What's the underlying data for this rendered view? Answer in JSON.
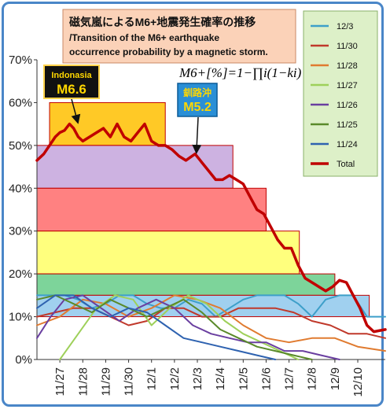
{
  "chart_data": {
    "type": "line",
    "title": "磁気嵐によるM6+地震発生確率の推移",
    "subtitle_lines": [
      "/Transition of the M6+ earthquake",
      "occurrence probability by a magnetic storm."
    ],
    "formula": "M6+[%]=1−∏i(1−ki)",
    "ylim": [
      0,
      70
    ],
    "y_ticks": [
      "0%",
      "10%",
      "20%",
      "30%",
      "40%",
      "50%",
      "60%",
      "70%"
    ],
    "x_ticks": [
      "11/27",
      "11/28",
      "11/29",
      "11/30",
      "12/1",
      "12/2",
      "12/3",
      "12/4",
      "12/5",
      "12/6",
      "12/7",
      "12/8",
      "12/9",
      "12/10"
    ],
    "xlim": [
      0,
      15.2
    ],
    "annotations": [
      {
        "line1": "Indonasia",
        "line2": "M6.6",
        "x": 1.42,
        "y": 55
      },
      {
        "line1": "釧路沖",
        "line2": "M5.2",
        "x": 6.9,
        "y": 48
      }
    ],
    "bands": [
      {
        "x0": 0.55,
        "x1": 5.6,
        "y0": 50,
        "y1": 60,
        "color": "#ffc000"
      },
      {
        "x0": 0.0,
        "x1": 8.55,
        "y0": 40,
        "y1": 50,
        "color": "#c4a4dc"
      },
      {
        "x0": 0.0,
        "x1": 10.0,
        "y0": 30,
        "y1": 40,
        "color": "#ff6b6b"
      },
      {
        "x0": 0.0,
        "x1": 11.45,
        "y0": 20,
        "y1": 30,
        "color": "#ffff66"
      },
      {
        "x0": 0.0,
        "x1": 13.0,
        "y0": 15,
        "y1": 20,
        "color": "#66cc88"
      },
      {
        "x0": 0.0,
        "x1": 14.5,
        "y0": 10,
        "y1": 15,
        "color": "#8fc8ec"
      }
    ],
    "series": [
      {
        "name": "12/3",
        "color": "#3d9fc9",
        "width": 2,
        "x": [
          0.0,
          0.6,
          1.2,
          1.8,
          2.4,
          3.0,
          3.6,
          4.2,
          4.8,
          5.4,
          6.0,
          6.6,
          7.2,
          7.8,
          8.4,
          9.0,
          9.6,
          10.2,
          10.8,
          11.4,
          12.0,
          12.6,
          13.2,
          13.8,
          14.4,
          15.2
        ],
        "y": [
          15,
          15,
          15,
          14,
          12,
          13,
          15,
          15,
          13,
          12,
          12,
          14,
          13,
          10,
          12,
          14,
          15,
          15,
          15,
          13,
          10,
          14,
          15,
          15,
          10,
          10
        ]
      },
      {
        "name": "11/30",
        "color": "#c0392b",
        "width": 2,
        "x": [
          0.0,
          0.8,
          1.6,
          2.4,
          3.2,
          4.0,
          4.8,
          5.6,
          6.4,
          7.2,
          8.0,
          8.8,
          9.6,
          10.4,
          11.2,
          12.0,
          12.8,
          13.6,
          14.4,
          15.2
        ],
        "y": [
          10,
          11,
          12,
          12,
          10,
          8,
          9,
          12,
          12,
          10,
          10,
          12,
          12,
          12,
          11,
          9,
          8,
          6,
          6,
          5
        ]
      },
      {
        "name": "11/28",
        "color": "#e07b30",
        "width": 2,
        "x": [
          0.0,
          1.0,
          2.0,
          3.0,
          4.0,
          5.0,
          6.0,
          7.0,
          8.0,
          9.0,
          10.0,
          11.0,
          12.0,
          13.0,
          14.0,
          15.2
        ],
        "y": [
          8,
          10,
          14,
          13,
          10,
          12,
          15,
          14,
          12,
          8,
          5,
          4,
          5,
          5,
          3,
          2
        ]
      },
      {
        "name": "11/27",
        "color": "#9ed05a",
        "width": 2,
        "x": [
          1.0,
          1.8,
          2.6,
          3.4,
          4.2,
          5.0,
          5.8,
          6.6,
          7.4,
          8.2,
          9.0,
          9.8,
          10.6,
          11.4
        ],
        "y": [
          0,
          6,
          12,
          15,
          14,
          8,
          12,
          15,
          13,
          9,
          6,
          4,
          2,
          0
        ]
      },
      {
        "name": "11/26",
        "color": "#6a3fa0",
        "width": 2,
        "x": [
          0.0,
          0.6,
          1.2,
          2.0,
          2.8,
          3.6,
          4.4,
          5.2,
          6.0,
          6.8,
          7.6,
          8.4,
          9.2,
          10.0,
          10.8,
          11.6,
          12.4,
          13.2
        ],
        "y": [
          5,
          10,
          14,
          15,
          12,
          9,
          12,
          14,
          12,
          8,
          6,
          5,
          4,
          4,
          2,
          2,
          1,
          0
        ]
      },
      {
        "name": "11/25",
        "color": "#5a8a2a",
        "width": 2,
        "x": [
          0.0,
          0.8,
          1.6,
          2.4,
          3.2,
          4.0,
          4.8,
          5.6,
          6.4,
          7.2,
          8.0,
          8.8,
          9.6,
          10.4,
          11.2,
          12.0
        ],
        "y": [
          14,
          15,
          13,
          11,
          14,
          12,
          10,
          12,
          14,
          11,
          7,
          5,
          3,
          2,
          1,
          0
        ]
      },
      {
        "name": "11/24",
        "color": "#2e62b0",
        "width": 2,
        "x": [
          0.0,
          0.8,
          1.6,
          2.4,
          3.2,
          4.0,
          4.8,
          5.6,
          6.4,
          7.2,
          8.0,
          8.8,
          9.6,
          10.4
        ],
        "y": [
          12,
          15,
          15,
          12,
          10,
          12,
          11,
          8,
          5,
          4,
          3,
          2,
          1,
          0
        ]
      },
      {
        "name": "Total",
        "color": "#c00000",
        "width": 3.5,
        "x": [
          0.0,
          0.3,
          0.55,
          0.8,
          1.0,
          1.2,
          1.42,
          1.6,
          1.8,
          2.0,
          2.3,
          2.6,
          2.9,
          3.2,
          3.5,
          3.8,
          4.1,
          4.4,
          4.7,
          5.0,
          5.3,
          5.6,
          5.9,
          6.2,
          6.5,
          6.9,
          7.2,
          7.5,
          7.8,
          8.1,
          8.4,
          8.7,
          9.0,
          9.3,
          9.6,
          9.9,
          10.2,
          10.5,
          10.8,
          11.1,
          11.4,
          11.7,
          12.0,
          12.3,
          12.6,
          12.9,
          13.2,
          13.5,
          13.8,
          14.1,
          14.4,
          14.7,
          15.2
        ],
        "y": [
          46.5,
          48,
          50,
          52,
          53,
          53.5,
          55,
          54,
          52,
          51,
          52,
          53,
          54,
          52,
          55,
          52,
          51,
          53,
          55,
          51,
          50,
          50,
          49,
          47.5,
          46.5,
          48,
          46,
          44,
          42,
          42,
          43,
          42,
          41,
          38,
          35,
          34,
          31,
          28,
          26,
          26,
          22,
          19,
          18,
          17,
          16,
          17,
          18.5,
          18,
          15,
          12,
          8,
          6.5,
          7
        ]
      }
    ],
    "legend": [
      "12/3",
      "11/30",
      "11/28",
      "11/27",
      "11/26",
      "11/25",
      "11/24",
      "Total"
    ],
    "legend_position": "right",
    "grid": false
  }
}
